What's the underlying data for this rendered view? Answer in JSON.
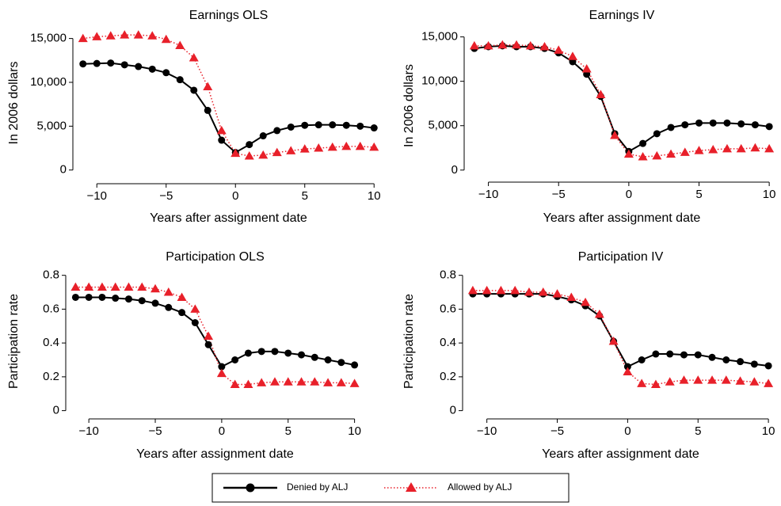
{
  "chart_data": [
    {
      "type": "line",
      "title": "Earnings OLS",
      "y_label": "In 2006 dollars",
      "x_label": "Years after assignment date",
      "x": [
        -11,
        -10,
        -9,
        -8,
        -7,
        -6,
        -5,
        -4,
        -3,
        -2,
        -1,
        0,
        1,
        2,
        3,
        4,
        5,
        6,
        7,
        8,
        9,
        10
      ],
      "xlim": [
        -11.5,
        10.5
      ],
      "xticks": [
        {
          "value": -10,
          "label": "−10"
        },
        {
          "value": -5,
          "label": "−5"
        },
        0,
        5,
        10
      ],
      "ylim": [
        -1200,
        16500
      ],
      "yticks": [
        0,
        {
          "value": 5000,
          "label": "5,000"
        },
        {
          "value": 10000,
          "label": "10,000"
        },
        {
          "value": 15000,
          "label": "15,000"
        }
      ],
      "series": [
        {
          "name": "Denied by ALJ",
          "color": "#000000",
          "marker": "circle",
          "line": "solid",
          "values": [
            12100,
            12150,
            12200,
            12000,
            11800,
            11500,
            11100,
            10300,
            9100,
            6800,
            3400,
            2000,
            2900,
            3900,
            4500,
            4900,
            5100,
            5150,
            5150,
            5100,
            5000,
            4800
          ]
        },
        {
          "name": "Allowed by ALJ",
          "color": "#e8202a",
          "marker": "triangle",
          "line": "dotted",
          "values": [
            15000,
            15200,
            15300,
            15400,
            15400,
            15300,
            14900,
            14200,
            12800,
            9500,
            4500,
            1900,
            1600,
            1700,
            2000,
            2200,
            2400,
            2500,
            2600,
            2700,
            2700,
            2600
          ]
        }
      ]
    },
    {
      "type": "line",
      "title": "Earnings IV",
      "y_label": "In 2006 dollars",
      "x_label": "Years after assignment date",
      "x": [
        -11,
        -10,
        -9,
        -8,
        -7,
        -6,
        -5,
        -4,
        -3,
        -2,
        -1,
        0,
        1,
        2,
        3,
        4,
        5,
        6,
        7,
        8,
        9,
        10
      ],
      "xlim": [
        -11.5,
        10.5
      ],
      "xticks": [
        {
          "value": -10,
          "label": "−10"
        },
        {
          "value": -5,
          "label": "−5"
        },
        0,
        5,
        10
      ],
      "ylim": [
        -1000,
        15500
      ],
      "yticks": [
        0,
        {
          "value": 5000,
          "label": "5,000"
        },
        {
          "value": 10000,
          "label": "10,000"
        },
        {
          "value": 15000,
          "label": "15,000"
        }
      ],
      "series": [
        {
          "name": "Denied by ALJ",
          "color": "#000000",
          "marker": "circle",
          "line": "solid",
          "values": [
            13700,
            13900,
            14000,
            13900,
            13900,
            13700,
            13200,
            12200,
            10800,
            8300,
            4100,
            2100,
            3000,
            4100,
            4800,
            5100,
            5300,
            5300,
            5300,
            5200,
            5100,
            4900
          ]
        },
        {
          "name": "Allowed by ALJ",
          "color": "#e8202a",
          "marker": "triangle",
          "line": "dotted",
          "values": [
            14000,
            14000,
            14100,
            14100,
            14000,
            13900,
            13500,
            12800,
            11400,
            8500,
            3900,
            1800,
            1500,
            1600,
            1800,
            2000,
            2200,
            2300,
            2400,
            2400,
            2500,
            2400
          ]
        }
      ]
    },
    {
      "type": "line",
      "title": "Participation OLS",
      "y_label": "Participation rate",
      "x_label": "Years after assignment date",
      "x": [
        -11,
        -10,
        -9,
        -8,
        -7,
        -6,
        -5,
        -4,
        -3,
        -2,
        -1,
        0,
        1,
        2,
        3,
        4,
        5,
        6,
        7,
        8,
        9,
        10
      ],
      "xlim": [
        -11.5,
        10.5
      ],
      "xticks": [
        {
          "value": -10,
          "label": "−10"
        },
        {
          "value": -5,
          "label": "−5"
        },
        0,
        5,
        10
      ],
      "ylim": [
        -0.03,
        0.85
      ],
      "yticks": [
        0,
        0.2,
        0.4,
        0.6,
        0.8
      ],
      "series": [
        {
          "name": "Denied by ALJ",
          "color": "#000000",
          "marker": "circle",
          "line": "solid",
          "values": [
            0.67,
            0.67,
            0.67,
            0.665,
            0.66,
            0.65,
            0.635,
            0.61,
            0.58,
            0.52,
            0.39,
            0.26,
            0.3,
            0.34,
            0.35,
            0.35,
            0.34,
            0.33,
            0.315,
            0.3,
            0.285,
            0.27
          ]
        },
        {
          "name": "Allowed by ALJ",
          "color": "#e8202a",
          "marker": "triangle",
          "line": "dotted",
          "values": [
            0.73,
            0.73,
            0.73,
            0.73,
            0.73,
            0.73,
            0.72,
            0.7,
            0.67,
            0.6,
            0.44,
            0.22,
            0.155,
            0.155,
            0.165,
            0.17,
            0.17,
            0.17,
            0.17,
            0.165,
            0.165,
            0.16
          ]
        }
      ]
    },
    {
      "type": "line",
      "title": "Participation IV",
      "y_label": "Participation rate",
      "x_label": "Years after assignment date",
      "x": [
        -11,
        -10,
        -9,
        -8,
        -7,
        -6,
        -5,
        -4,
        -3,
        -2,
        -1,
        0,
        1,
        2,
        3,
        4,
        5,
        6,
        7,
        8,
        9,
        10
      ],
      "xlim": [
        -11.5,
        10.5
      ],
      "xticks": [
        {
          "value": -10,
          "label": "−10"
        },
        {
          "value": -5,
          "label": "−5"
        },
        0,
        5,
        10
      ],
      "ylim": [
        -0.03,
        0.85
      ],
      "yticks": [
        0,
        0.2,
        0.4,
        0.6,
        0.8
      ],
      "series": [
        {
          "name": "Denied by ALJ",
          "color": "#000000",
          "marker": "circle",
          "line": "solid",
          "values": [
            0.69,
            0.69,
            0.69,
            0.69,
            0.69,
            0.69,
            0.675,
            0.655,
            0.62,
            0.56,
            0.41,
            0.26,
            0.3,
            0.335,
            0.335,
            0.33,
            0.33,
            0.315,
            0.3,
            0.29,
            0.275,
            0.265
          ]
        },
        {
          "name": "Allowed by ALJ",
          "color": "#e8202a",
          "marker": "triangle",
          "line": "dotted",
          "values": [
            0.71,
            0.71,
            0.71,
            0.71,
            0.7,
            0.7,
            0.69,
            0.67,
            0.64,
            0.57,
            0.41,
            0.23,
            0.16,
            0.155,
            0.17,
            0.18,
            0.18,
            0.18,
            0.18,
            0.175,
            0.17,
            0.16
          ]
        }
      ]
    }
  ]
}
